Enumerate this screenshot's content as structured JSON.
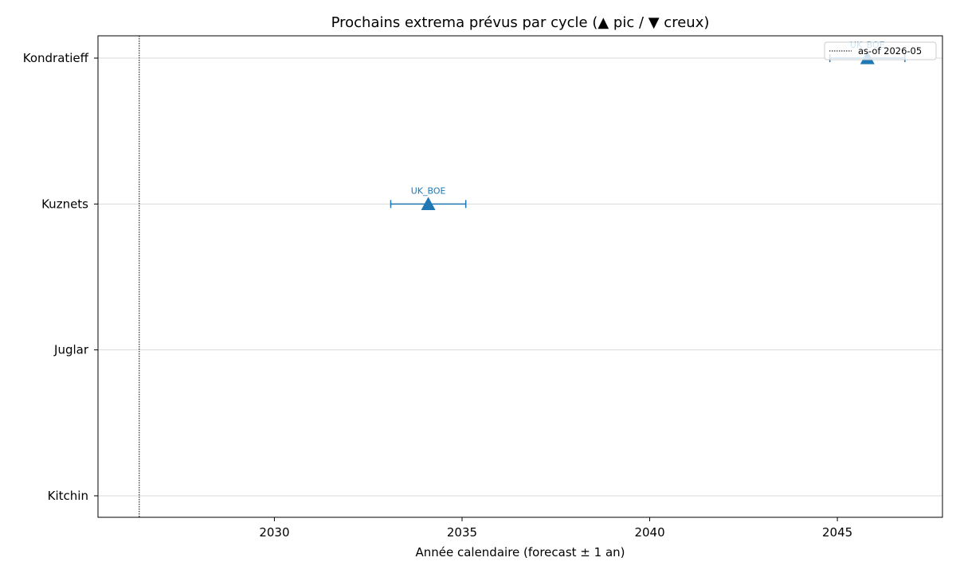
{
  "chart_data": {
    "type": "scatter",
    "title": "Prochains extrema prévus par cycle (▲ pic / ▼ creux)",
    "xlabel": "Année calendaire (forecast ± 1 an)",
    "ylabel": "",
    "xlim": [
      2025.3,
      2047.8
    ],
    "x_ticks": [
      2030,
      2035,
      2040,
      2045
    ],
    "categories": [
      "Kitchin",
      "Juglar",
      "Kuznets",
      "Kondratieff"
    ],
    "points": [
      {
        "cycle": "Kuznets",
        "x": 2034.1,
        "err": 1.0,
        "marker": "peak",
        "label": "UK_BOE",
        "color": "#1f77b4"
      },
      {
        "cycle": "Kondratieff",
        "x": 2045.8,
        "err": 1.0,
        "marker": "peak",
        "label": "UK_BOE",
        "color": "#1f77b4"
      }
    ],
    "vline": {
      "x": 2026.4,
      "label": "as-of 2026-05"
    },
    "grid": "horizontal",
    "legend_position": "top-right",
    "colors": {
      "series": "#1f77b4",
      "grid": "#d9d9d9",
      "axis": "#000000"
    }
  }
}
